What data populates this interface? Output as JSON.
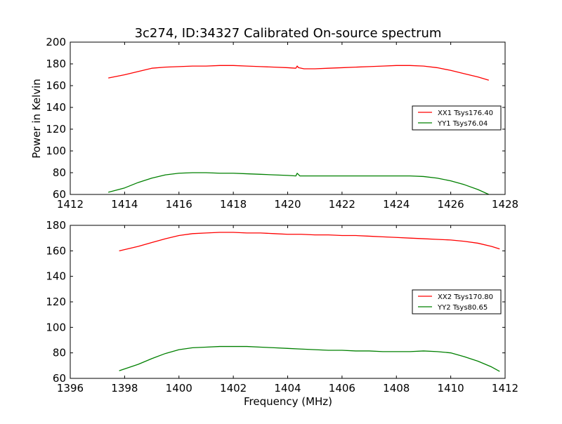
{
  "title": "3c274, ID:34327 Calibrated On-source spectrum",
  "ylabel": "Power in Kelvin",
  "xlabel": "Frequency (MHz)",
  "colors": {
    "red": "#ff0000",
    "green": "#008000"
  },
  "chart_data": [
    {
      "type": "line",
      "xlim": [
        1412,
        1428
      ],
      "ylim": [
        60,
        200
      ],
      "x_ticks": [
        1412,
        1414,
        1416,
        1418,
        1420,
        1422,
        1424,
        1426,
        1428
      ],
      "y_ticks": [
        60,
        80,
        100,
        120,
        140,
        160,
        180,
        200
      ],
      "legend_position": "center-right",
      "series": [
        {
          "name": "XX1 Tsys176.40",
          "color": "#ff0000",
          "points": [
            [
              1413.4,
              167
            ],
            [
              1414.0,
              170
            ],
            [
              1414.5,
              173
            ],
            [
              1415.0,
              176
            ],
            [
              1415.5,
              177
            ],
            [
              1416.0,
              177.5
            ],
            [
              1416.5,
              178
            ],
            [
              1417.0,
              178
            ],
            [
              1417.5,
              178.5
            ],
            [
              1418.0,
              178.5
            ],
            [
              1418.5,
              178
            ],
            [
              1419.0,
              177.5
            ],
            [
              1419.5,
              177
            ],
            [
              1420.0,
              176.5
            ],
            [
              1420.3,
              176
            ],
            [
              1420.35,
              178
            ],
            [
              1420.4,
              176.5
            ],
            [
              1420.6,
              175.5
            ],
            [
              1421.0,
              175.5
            ],
            [
              1421.5,
              176
            ],
            [
              1422.0,
              176.5
            ],
            [
              1422.5,
              177
            ],
            [
              1423.0,
              177.5
            ],
            [
              1423.5,
              178
            ],
            [
              1424.0,
              178.5
            ],
            [
              1424.5,
              178.5
            ],
            [
              1425.0,
              178
            ],
            [
              1425.5,
              176.5
            ],
            [
              1426.0,
              174
            ],
            [
              1426.5,
              171
            ],
            [
              1427.0,
              168
            ],
            [
              1427.4,
              165
            ]
          ]
        },
        {
          "name": "YY1 Tsys76.04",
          "color": "#008000",
          "points": [
            [
              1413.4,
              62
            ],
            [
              1414.0,
              66
            ],
            [
              1414.5,
              71
            ],
            [
              1415.0,
              75
            ],
            [
              1415.5,
              78
            ],
            [
              1416.0,
              79.5
            ],
            [
              1416.5,
              80
            ],
            [
              1417.0,
              80
            ],
            [
              1417.5,
              79.5
            ],
            [
              1418.0,
              79.5
            ],
            [
              1418.5,
              79
            ],
            [
              1419.0,
              78.5
            ],
            [
              1419.5,
              78
            ],
            [
              1420.0,
              77.5
            ],
            [
              1420.3,
              77
            ],
            [
              1420.35,
              79.5
            ],
            [
              1420.45,
              77
            ],
            [
              1421.0,
              77
            ],
            [
              1421.5,
              77
            ],
            [
              1422.0,
              77
            ],
            [
              1422.5,
              77
            ],
            [
              1423.0,
              77
            ],
            [
              1423.5,
              77
            ],
            [
              1424.0,
              77
            ],
            [
              1424.5,
              77
            ],
            [
              1425.0,
              76.5
            ],
            [
              1425.5,
              75
            ],
            [
              1426.0,
              72.5
            ],
            [
              1426.5,
              69
            ],
            [
              1427.0,
              64.5
            ],
            [
              1427.4,
              60
            ]
          ]
        }
      ]
    },
    {
      "type": "line",
      "xlim": [
        1396,
        1412
      ],
      "ylim": [
        60,
        180
      ],
      "x_ticks": [
        1396,
        1398,
        1400,
        1402,
        1404,
        1406,
        1408,
        1410,
        1412
      ],
      "y_ticks": [
        60,
        80,
        100,
        120,
        140,
        160,
        180
      ],
      "legend_position": "center-right",
      "series": [
        {
          "name": "XX2 Tsys170.80",
          "color": "#ff0000",
          "points": [
            [
              1397.8,
              160
            ],
            [
              1398.5,
              163.5
            ],
            [
              1399.0,
              166.5
            ],
            [
              1399.5,
              169.5
            ],
            [
              1400.0,
              172
            ],
            [
              1400.5,
              173.5
            ],
            [
              1401.0,
              174
            ],
            [
              1401.5,
              174.5
            ],
            [
              1402.0,
              174.5
            ],
            [
              1402.5,
              174
            ],
            [
              1403.0,
              174
            ],
            [
              1403.5,
              173.5
            ],
            [
              1404.0,
              173
            ],
            [
              1404.5,
              173
            ],
            [
              1405.0,
              172.5
            ],
            [
              1405.5,
              172.5
            ],
            [
              1406.0,
              172
            ],
            [
              1406.5,
              172
            ],
            [
              1407.0,
              171.5
            ],
            [
              1407.5,
              171
            ],
            [
              1408.0,
              170.5
            ],
            [
              1408.5,
              170
            ],
            [
              1409.0,
              169.5
            ],
            [
              1409.5,
              169
            ],
            [
              1410.0,
              168.5
            ],
            [
              1410.5,
              167.5
            ],
            [
              1411.0,
              166
            ],
            [
              1411.5,
              163.5
            ],
            [
              1411.8,
              161.5
            ]
          ]
        },
        {
          "name": "YY2 Tsys80.65",
          "color": "#008000",
          "points": [
            [
              1397.8,
              66
            ],
            [
              1398.5,
              71
            ],
            [
              1399.0,
              75.5
            ],
            [
              1399.5,
              79.5
            ],
            [
              1400.0,
              82.5
            ],
            [
              1400.5,
              84
            ],
            [
              1401.0,
              84.5
            ],
            [
              1401.5,
              85
            ],
            [
              1402.0,
              85
            ],
            [
              1402.5,
              85
            ],
            [
              1403.0,
              84.5
            ],
            [
              1403.5,
              84
            ],
            [
              1404.0,
              83.5
            ],
            [
              1404.5,
              83
            ],
            [
              1405.0,
              82.5
            ],
            [
              1405.5,
              82
            ],
            [
              1406.0,
              82
            ],
            [
              1406.5,
              81.5
            ],
            [
              1407.0,
              81.5
            ],
            [
              1407.5,
              81
            ],
            [
              1408.0,
              81
            ],
            [
              1408.5,
              81
            ],
            [
              1409.0,
              81.5
            ],
            [
              1409.5,
              81
            ],
            [
              1410.0,
              80
            ],
            [
              1410.5,
              77
            ],
            [
              1411.0,
              73.5
            ],
            [
              1411.5,
              69
            ],
            [
              1411.8,
              65.5
            ]
          ]
        }
      ]
    }
  ]
}
